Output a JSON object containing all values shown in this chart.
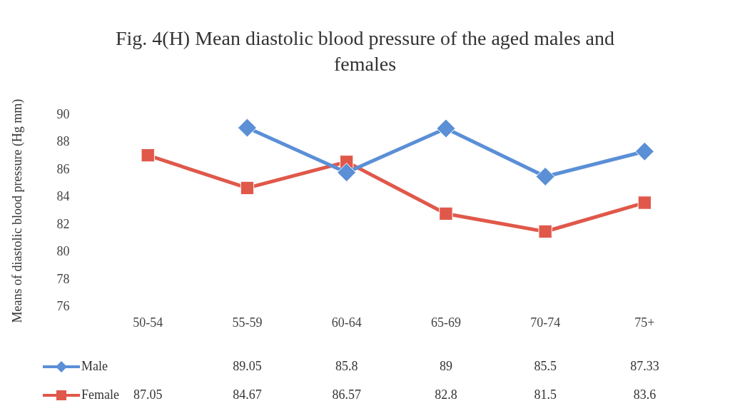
{
  "chart_data": {
    "type": "line",
    "title": "Fig. 4(H) Mean diastolic blood pressure of the aged males and females",
    "ylabel": "Means of diastolic blood pressure (Hg mm)",
    "categories": [
      "50-54",
      "55-59",
      "60-64",
      "65-69",
      "70-74",
      "75+"
    ],
    "series": [
      {
        "name": "Male",
        "color": "#5b8fd6",
        "marker": "diamond",
        "values": [
          null,
          89.05,
          85.8,
          89,
          85.5,
          87.33
        ]
      },
      {
        "name": "Female",
        "color": "#e0584a",
        "marker": "square",
        "values": [
          87.05,
          84.67,
          86.57,
          82.8,
          81.5,
          83.6
        ]
      }
    ],
    "ylim": [
      76,
      90
    ],
    "yticks": [
      76,
      78,
      80,
      82,
      84,
      86,
      88,
      90
    ],
    "grid": false,
    "legend": "bottom left",
    "data_labels": true
  }
}
